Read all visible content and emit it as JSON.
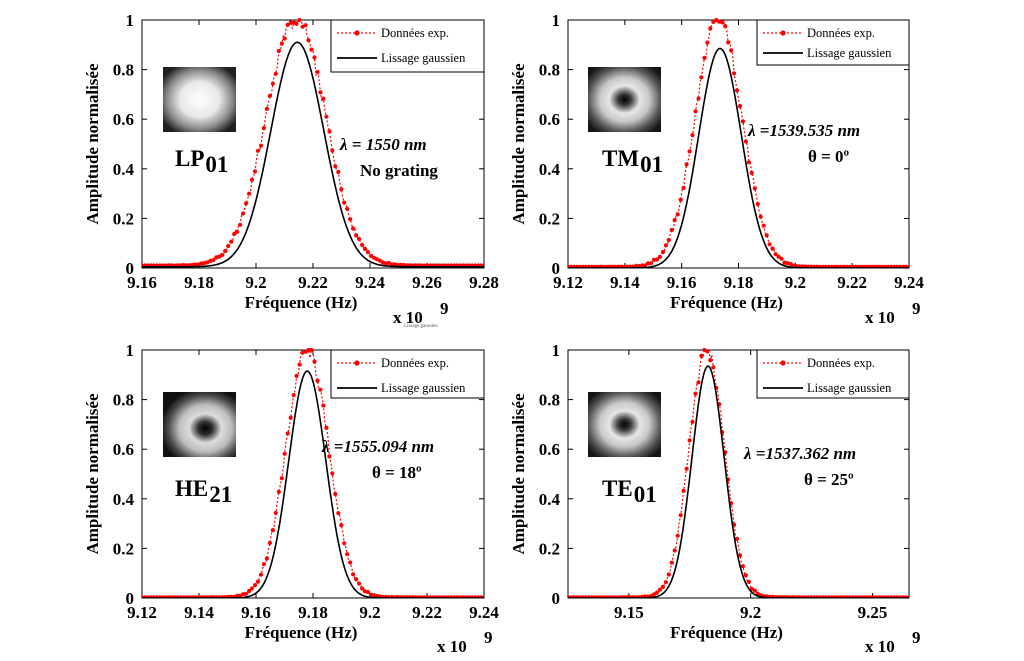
{
  "chart_data": [
    {
      "type": "line",
      "panel": "top-left",
      "xlabel": "Fréquence (Hz)",
      "ylabel": "Amplitude normalisée",
      "x_multiplier": "x 10",
      "x_exponent": "9",
      "xlim": [
        9.16,
        9.28
      ],
      "ylim": [
        0,
        1
      ],
      "xticks": [
        "9.16",
        "9.18",
        "9.2",
        "9.22",
        "9.24",
        "9.26",
        "9.28"
      ],
      "yticks": [
        "0",
        "0.2",
        "0.4",
        "0.6",
        "0.8",
        "1"
      ],
      "legend": [
        "Données exp.",
        "Lissage gaussien"
      ],
      "legend_position": "top-right",
      "mode_label": "LP",
      "mode_sub": "01",
      "annotation_lambda": "λ = 1550 nm",
      "annotation_2": "No grating",
      "series": [
        {
          "name": "Données exp.",
          "center": 9.214,
          "sigma": 0.0105,
          "peak": 1.0,
          "baseline": 0.01
        },
        {
          "name": "Lissage gaussien",
          "center": 9.2145,
          "sigma": 0.0093,
          "peak": 0.91,
          "baseline": 0.005
        }
      ]
    },
    {
      "type": "line",
      "panel": "top-right",
      "xlabel": "Fréquence (Hz)",
      "ylabel": "Amplitude normalisée",
      "x_multiplier": "x 10",
      "x_exponent": "9",
      "xlim": [
        9.12,
        9.24
      ],
      "ylim": [
        0,
        1
      ],
      "xticks": [
        "9.12",
        "9.14",
        "9.16",
        "9.18",
        "9.2",
        "9.22",
        "9.24"
      ],
      "yticks": [
        "0",
        "0.2",
        "0.4",
        "0.6",
        "0.8",
        "1"
      ],
      "legend": [
        "Données exp.",
        "Lissage gaussien"
      ],
      "legend_position": "top-right",
      "mode_label": "TM",
      "mode_sub": "01",
      "annotation_lambda": "λ =1539.535 nm",
      "annotation_2": "θ = 0º",
      "series": [
        {
          "name": "Données exp.",
          "center": 9.173,
          "sigma": 0.0083,
          "peak": 1.0,
          "baseline": 0.005
        },
        {
          "name": "Lissage gaussien",
          "center": 9.1735,
          "sigma": 0.0075,
          "peak": 0.885,
          "baseline": 0.0
        }
      ]
    },
    {
      "type": "line",
      "panel": "bottom-left",
      "xlabel": "Fréquence (Hz)",
      "ylabel": "Amplitude normalisée",
      "x_multiplier": "x 10",
      "x_exponent": "9",
      "xlim": [
        9.12,
        9.24
      ],
      "ylim": [
        0,
        1
      ],
      "xticks": [
        "9.12",
        "9.14",
        "9.16",
        "9.18",
        "9.2",
        "9.22",
        "9.24"
      ],
      "yticks": [
        "0",
        "0.2",
        "0.4",
        "0.6",
        "0.8",
        "1"
      ],
      "legend": [
        "Données exp.",
        "Lissage gaussien"
      ],
      "legend_position": "top-right",
      "mode_label": "HE",
      "mode_sub": "21",
      "annotation_lambda": "λ =1555.094 nm",
      "annotation_2": "θ = 18º",
      "series": [
        {
          "name": "Données exp.",
          "center": 9.178,
          "sigma": 0.0075,
          "peak": 1.0,
          "baseline": 0.003
        },
        {
          "name": "Lissage gaussien",
          "center": 9.178,
          "sigma": 0.0065,
          "peak": 0.915,
          "baseline": 0.0
        }
      ]
    },
    {
      "type": "line",
      "panel": "bottom-right",
      "xlabel": "Fréquence (Hz)",
      "ylabel": "Amplitude normalisée",
      "x_multiplier": "x 10",
      "x_exponent": "9",
      "xlim": [
        9.125,
        9.265
      ],
      "ylim": [
        0,
        1
      ],
      "xticks": [
        "9.15",
        "9.2",
        "9.25"
      ],
      "xtick_values": [
        9.15,
        9.2,
        9.25
      ],
      "yticks": [
        "0",
        "0.2",
        "0.4",
        "0.6",
        "0.8",
        "1"
      ],
      "legend": [
        "Données exp.",
        "Lissage gaussien"
      ],
      "legend_position": "top-right",
      "mode_label": "TE",
      "mode_sub": "01",
      "annotation_lambda": "λ =1537.362 nm",
      "annotation_2": "θ = 25º",
      "series": [
        {
          "name": "Données exp.",
          "center": 9.182,
          "sigma": 0.0072,
          "peak": 1.0,
          "baseline": 0.003
        },
        {
          "name": "Lissage gaussien",
          "center": 9.1825,
          "sigma": 0.0066,
          "peak": 0.935,
          "baseline": 0.0
        }
      ]
    }
  ],
  "stray_label": "Lissage gaussien",
  "colors": {
    "exp": "#ff0000",
    "fit": "#000000"
  }
}
